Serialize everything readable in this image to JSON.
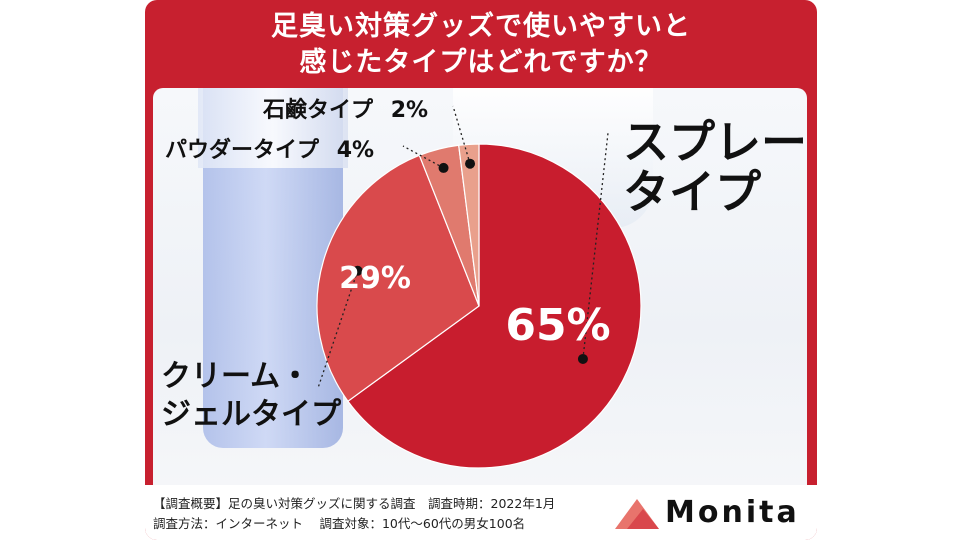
{
  "title": {
    "line1": "足臭い対策グッズで使いやすいと",
    "line2": "感じたタイプはどれですか？"
  },
  "colors": {
    "frame": "#c7202f",
    "spray": "#c81d2e",
    "cream": "#d94a4c",
    "powder": "#e07a6e",
    "soap": "#e9a08c"
  },
  "chart_data": {
    "type": "pie",
    "slices": [
      {
        "label_lines": [
          "スプレー",
          "タイプ"
        ],
        "value": 65,
        "value_text": "65%"
      },
      {
        "label_lines": [
          "クリーム・",
          "ジェルタイプ"
        ],
        "value": 29,
        "value_text": "29%"
      },
      {
        "label_lines": [
          "パウダータイプ"
        ],
        "value": 4,
        "value_text": "4%"
      },
      {
        "label_lines": [
          "石鹸タイプ"
        ],
        "value": 2,
        "value_text": "2%"
      }
    ]
  },
  "footer": {
    "line1": "【調査概要】足の臭い対策グッズに関する調査　調査時期：2022年1月",
    "line2": "調査方法：インターネット　 調査対象：10代〜60代の男女100名",
    "logo": "Monita"
  }
}
